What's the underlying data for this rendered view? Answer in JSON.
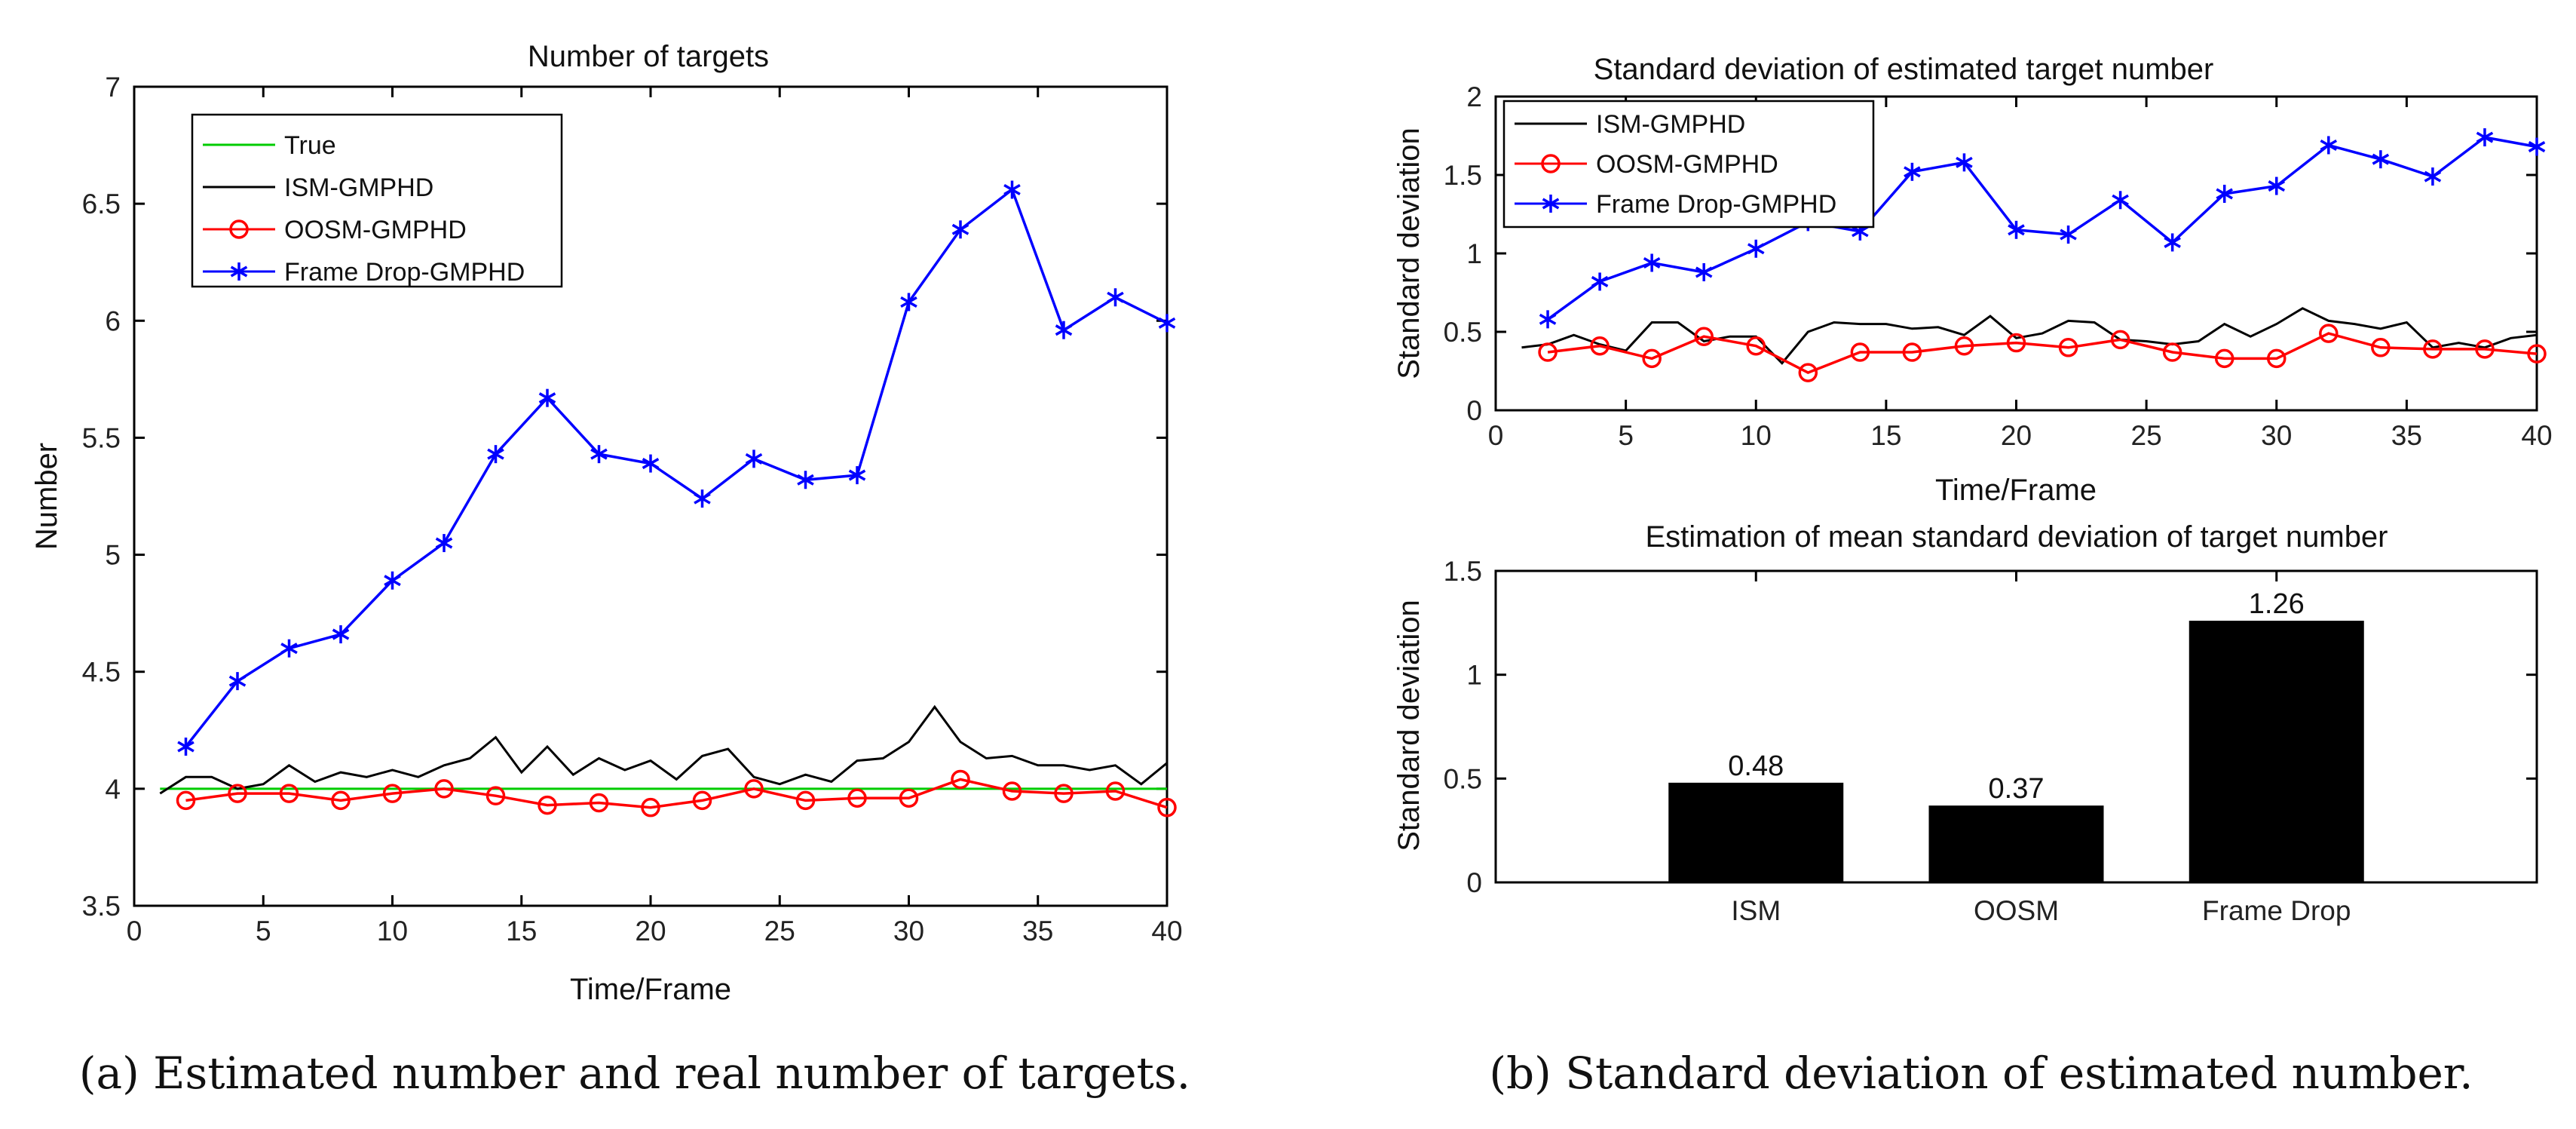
{
  "chart_data": [
    {
      "id": "panel-a",
      "type": "line",
      "title": "Number of targets",
      "xlabel": "Time/Frame",
      "ylabel": "Number",
      "xlim": [
        0,
        40
      ],
      "ylim": [
        3.5,
        7
      ],
      "xticks": [
        0,
        5,
        10,
        15,
        20,
        25,
        30,
        35,
        40
      ],
      "yticks": [
        3.5,
        4,
        4.5,
        5,
        5.5,
        6,
        6.5,
        7
      ],
      "legend": "top-left",
      "series": [
        {
          "name": "True",
          "color": "#00cc00",
          "marker": "none",
          "x": [
            1,
            40
          ],
          "values": [
            4,
            4
          ]
        },
        {
          "name": "ISM-GMPHD",
          "color": "#000000",
          "marker": "none",
          "x": [
            1,
            2,
            3,
            4,
            5,
            6,
            7,
            8,
            9,
            10,
            11,
            12,
            13,
            14,
            15,
            16,
            17,
            18,
            19,
            20,
            21,
            22,
            23,
            24,
            25,
            26,
            27,
            28,
            29,
            30,
            31,
            32,
            33,
            34,
            35,
            36,
            37,
            38,
            39,
            40
          ],
          "values": [
            3.98,
            4.05,
            4.05,
            4.0,
            4.02,
            4.1,
            4.03,
            4.07,
            4.05,
            4.08,
            4.05,
            4.1,
            4.13,
            4.22,
            4.07,
            4.18,
            4.06,
            4.13,
            4.08,
            4.12,
            4.04,
            4.14,
            4.17,
            4.05,
            4.02,
            4.06,
            4.03,
            4.12,
            4.13,
            4.2,
            4.35,
            4.2,
            4.13,
            4.14,
            4.1,
            4.1,
            4.08,
            4.1,
            4.02,
            4.11
          ]
        },
        {
          "name": "OOSM-GMPHD",
          "color": "#ff0000",
          "marker": "circle",
          "x": [
            2,
            4,
            6,
            8,
            10,
            12,
            14,
            16,
            18,
            20,
            22,
            24,
            26,
            28,
            30,
            32,
            34,
            36,
            38,
            40
          ],
          "values": [
            3.95,
            3.98,
            3.98,
            3.95,
            3.98,
            4.0,
            3.97,
            3.93,
            3.94,
            3.92,
            3.95,
            4.0,
            3.95,
            3.96,
            3.96,
            4.04,
            3.99,
            3.98,
            3.99,
            3.92
          ]
        },
        {
          "name": "Frame Drop-GMPHD",
          "color": "#0000ff",
          "marker": "star",
          "x": [
            2,
            4,
            6,
            8,
            10,
            12,
            14,
            16,
            18,
            20,
            22,
            24,
            26,
            28,
            30,
            32,
            34,
            36,
            38,
            40
          ],
          "values": [
            4.18,
            4.46,
            4.6,
            4.66,
            4.89,
            5.05,
            5.43,
            5.67,
            5.43,
            5.39,
            5.24,
            5.41,
            5.32,
            5.34,
            6.08,
            6.39,
            6.56,
            5.96,
            6.1,
            5.99
          ]
        }
      ]
    },
    {
      "id": "panel-b-top",
      "type": "line",
      "title": "Standard deviation of estimated target number",
      "xlabel": "Time/Frame",
      "ylabel": "Standard deviation",
      "xlim": [
        0,
        40
      ],
      "ylim": [
        0,
        2
      ],
      "xticks": [
        0,
        5,
        10,
        15,
        20,
        25,
        30,
        35,
        40
      ],
      "yticks": [
        0,
        0.5,
        1,
        1.5,
        2
      ],
      "legend": "top-left",
      "series": [
        {
          "name": "ISM-GMPHD",
          "color": "#000000",
          "marker": "none",
          "x": [
            1,
            2,
            3,
            4,
            5,
            6,
            7,
            8,
            9,
            10,
            11,
            12,
            13,
            14,
            15,
            16,
            17,
            18,
            19,
            20,
            21,
            22,
            23,
            24,
            25,
            26,
            27,
            28,
            29,
            30,
            31,
            32,
            33,
            34,
            35,
            36,
            37,
            38,
            39,
            40
          ],
          "values": [
            0.4,
            0.42,
            0.48,
            0.42,
            0.38,
            0.56,
            0.56,
            0.44,
            0.47,
            0.47,
            0.3,
            0.5,
            0.56,
            0.55,
            0.55,
            0.52,
            0.53,
            0.48,
            0.6,
            0.46,
            0.49,
            0.57,
            0.56,
            0.45,
            0.44,
            0.42,
            0.44,
            0.55,
            0.47,
            0.55,
            0.65,
            0.57,
            0.55,
            0.52,
            0.56,
            0.4,
            0.43,
            0.4,
            0.46,
            0.48
          ]
        },
        {
          "name": "OOSM-GMPHD",
          "color": "#ff0000",
          "marker": "circle",
          "x": [
            2,
            4,
            6,
            8,
            10,
            12,
            14,
            16,
            18,
            20,
            22,
            24,
            26,
            28,
            30,
            32,
            34,
            36,
            38,
            40
          ],
          "values": [
            0.37,
            0.41,
            0.33,
            0.47,
            0.41,
            0.24,
            0.37,
            0.37,
            0.41,
            0.43,
            0.4,
            0.45,
            0.37,
            0.33,
            0.33,
            0.49,
            0.4,
            0.39,
            0.39,
            0.36
          ]
        },
        {
          "name": "Frame Drop-GMPHD",
          "color": "#0000ff",
          "marker": "star",
          "x": [
            2,
            4,
            6,
            8,
            10,
            12,
            14,
            16,
            18,
            20,
            22,
            24,
            26,
            28,
            30,
            32,
            34,
            36,
            38,
            40
          ],
          "values": [
            0.58,
            0.82,
            0.94,
            0.88,
            1.03,
            1.2,
            1.14,
            1.52,
            1.58,
            1.15,
            1.12,
            1.34,
            1.07,
            1.38,
            1.43,
            1.69,
            1.6,
            1.49,
            1.74,
            1.68
          ]
        }
      ]
    },
    {
      "id": "panel-b-bottom",
      "type": "bar",
      "title": "Estimation of mean standard deviation of target number",
      "xlabel": "",
      "ylabel": "Standard deviation",
      "ylim": [
        0,
        1.5
      ],
      "yticks": [
        0,
        0.5,
        1,
        1.5
      ],
      "categories": [
        "ISM",
        "OOSM",
        "Frame Drop"
      ],
      "values": [
        0.48,
        0.37,
        1.26
      ],
      "data_labels": [
        "0.48",
        "0.37",
        "1.26"
      ],
      "color": "#000000"
    }
  ],
  "captions": {
    "a": "(a)  Estimated number and real number of targets.",
    "b": "(b)  Standard deviation of estimated number."
  }
}
